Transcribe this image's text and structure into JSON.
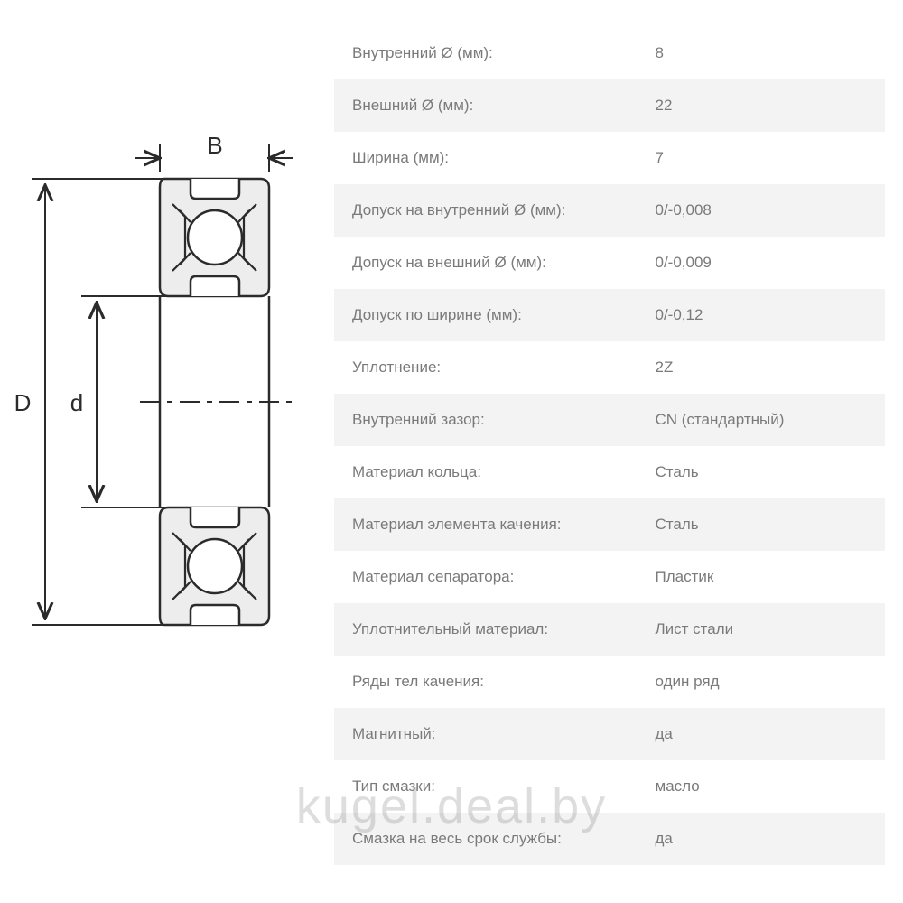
{
  "diagram": {
    "labels": {
      "D": "D",
      "d": "d",
      "B": "B"
    },
    "stroke_color": "#2b2b2b",
    "stroke_width": 2,
    "fill_light": "#ededed",
    "fill_dark": "#a8a8a8",
    "arrow_color": "#2b2b2b"
  },
  "spec_table": {
    "row_colors": {
      "odd": "#ffffff",
      "even": "#f3f3f3"
    },
    "text_color": "#7a7a7a",
    "font_size": 17,
    "rows": [
      {
        "label": "Внутренний Ø (мм):",
        "value": "8"
      },
      {
        "label": "Внешний Ø (мм):",
        "value": "22"
      },
      {
        "label": "Ширина (мм):",
        "value": "7"
      },
      {
        "label": "Допуск на внутренний Ø (мм):",
        "value": "0/-0,008"
      },
      {
        "label": "Допуск на внешний Ø (мм):",
        "value": "0/-0,009"
      },
      {
        "label": "Допуск по ширине (мм):",
        "value": "0/-0,12"
      },
      {
        "label": "Уплотнение:",
        "value": "2Z"
      },
      {
        "label": "Внутренний зазор:",
        "value": "CN (стандартный)"
      },
      {
        "label": "Материал кольца:",
        "value": "Сталь"
      },
      {
        "label": "Материал элемента качения:",
        "value": "Сталь"
      },
      {
        "label": "Материал сепаратора:",
        "value": "Пластик"
      },
      {
        "label": "Уплотнительный материал:",
        "value": "Лист стали"
      },
      {
        "label": "Ряды тел качения:",
        "value": "один ряд"
      },
      {
        "label": "Магнитный:",
        "value": "да"
      },
      {
        "label": "Тип смазки:",
        "value": "масло"
      },
      {
        "label": "Смазка на весь срок службы:",
        "value": "да"
      }
    ]
  },
  "watermark": {
    "text": "kugel.deal.by",
    "color": "rgba(120,120,120,0.25)",
    "font_size": 54
  }
}
